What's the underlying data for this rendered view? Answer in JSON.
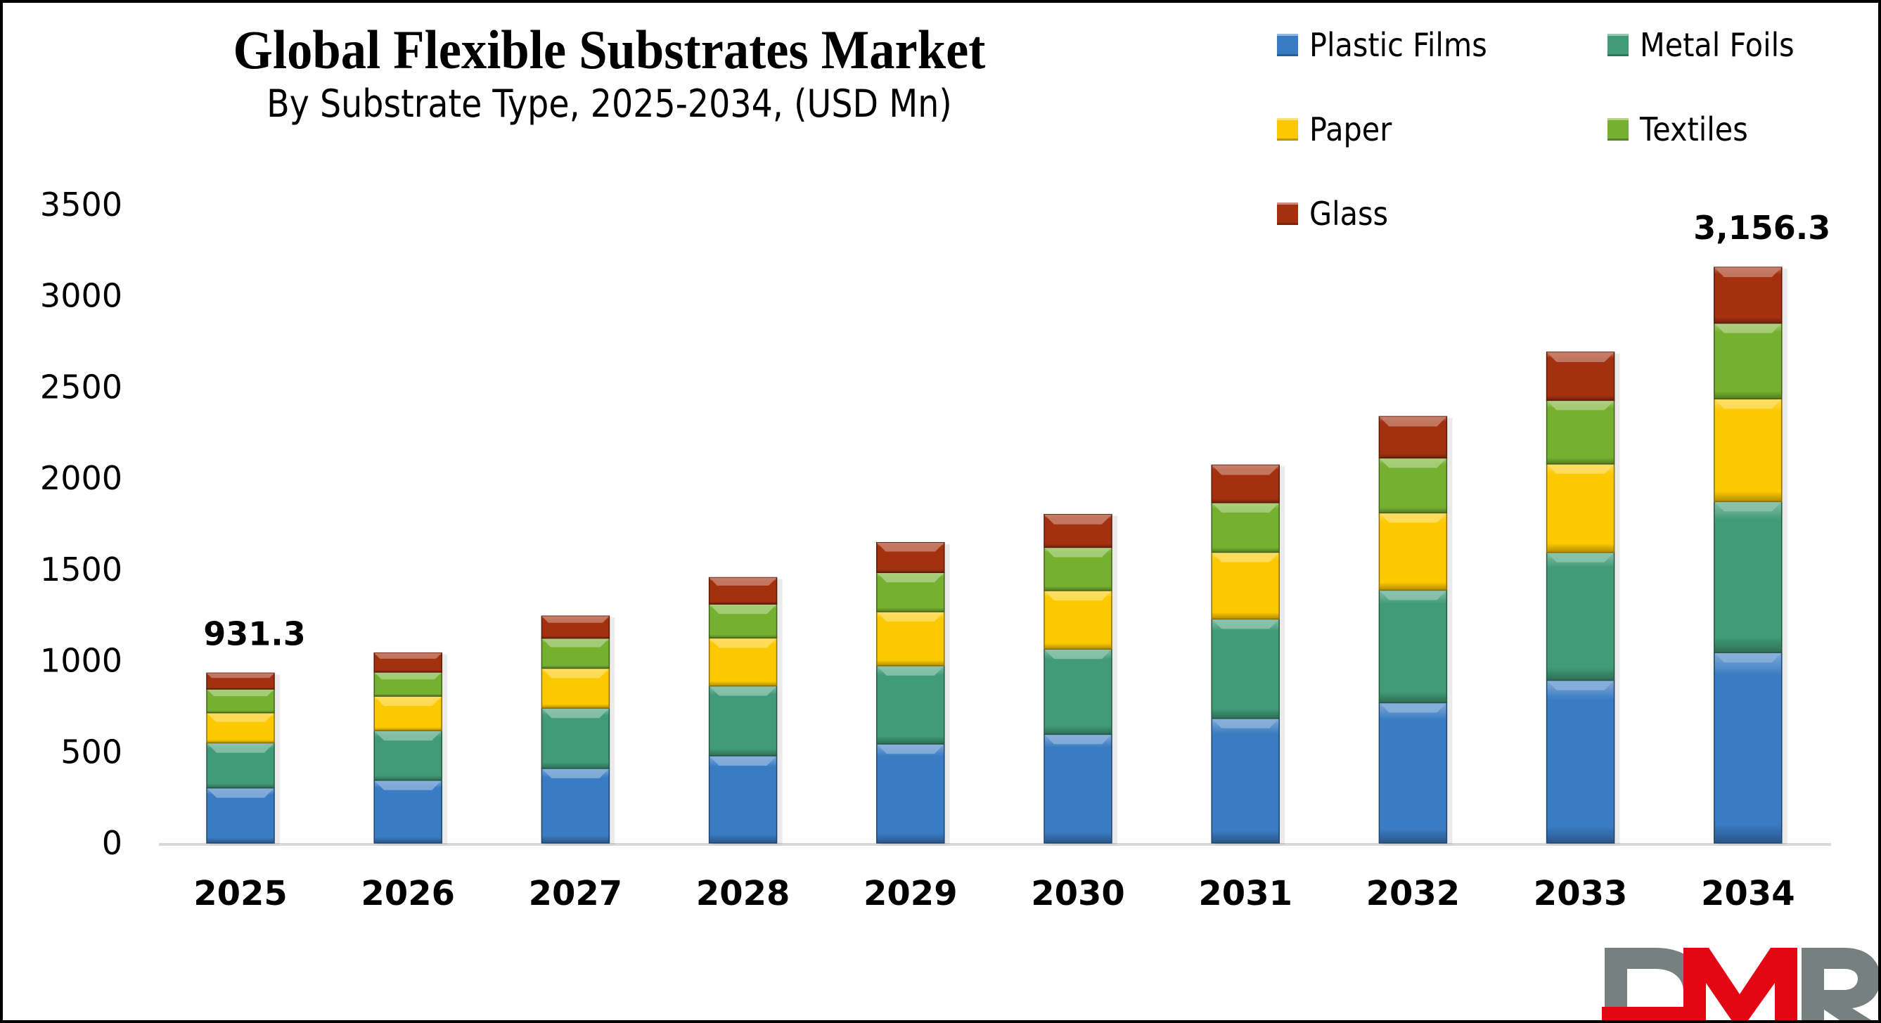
{
  "chart_data": {
    "type": "bar",
    "stacked": true,
    "title": "Global Flexible Substrates Market",
    "subtitle": "By Substrate Type, 2025-2034, (USD Mn)",
    "xlabel": "",
    "ylabel": "",
    "ylim": [
      0,
      3500
    ],
    "yticks": [
      0,
      500,
      1000,
      1500,
      2000,
      2500,
      3000,
      3500
    ],
    "grid": false,
    "legend_position": "top-right",
    "categories": [
      "2025",
      "2026",
      "2027",
      "2028",
      "2029",
      "2030",
      "2031",
      "2032",
      "2033",
      "2034"
    ],
    "series": [
      {
        "name": "Plastic Films",
        "color": "#3a7cc3",
        "values": [
          302,
          344,
          409,
          478,
          543,
          596,
          683,
          769,
          892,
          1044
        ]
      },
      {
        "name": "Metal Foils",
        "color": "#419b78",
        "values": [
          247,
          272,
          330,
          383,
          429,
          467,
          545,
          617,
          701,
          828
        ]
      },
      {
        "name": "Paper",
        "color": "#fcc800",
        "values": [
          165,
          189,
          219,
          263,
          296,
          321,
          366,
          424,
          485,
          563
        ]
      },
      {
        "name": "Textiles",
        "color": "#76b030",
        "values": [
          130,
          132,
          165,
          186,
          215,
          237,
          272,
          301,
          349,
          415
        ]
      },
      {
        "name": "Glass",
        "color": "#a3300e",
        "values": [
          87.3,
          105,
          121,
          145,
          164,
          180,
          206,
          227,
          264,
          306.3
        ]
      }
    ],
    "annotations": [
      {
        "category": "2025",
        "text": "931.3"
      },
      {
        "category": "2034",
        "text": "3,156.3"
      }
    ]
  },
  "branding": {
    "logo_text": [
      "D",
      "M",
      "R"
    ],
    "logo_colors": {
      "grey": "#76807f",
      "red": "#e30613"
    }
  }
}
